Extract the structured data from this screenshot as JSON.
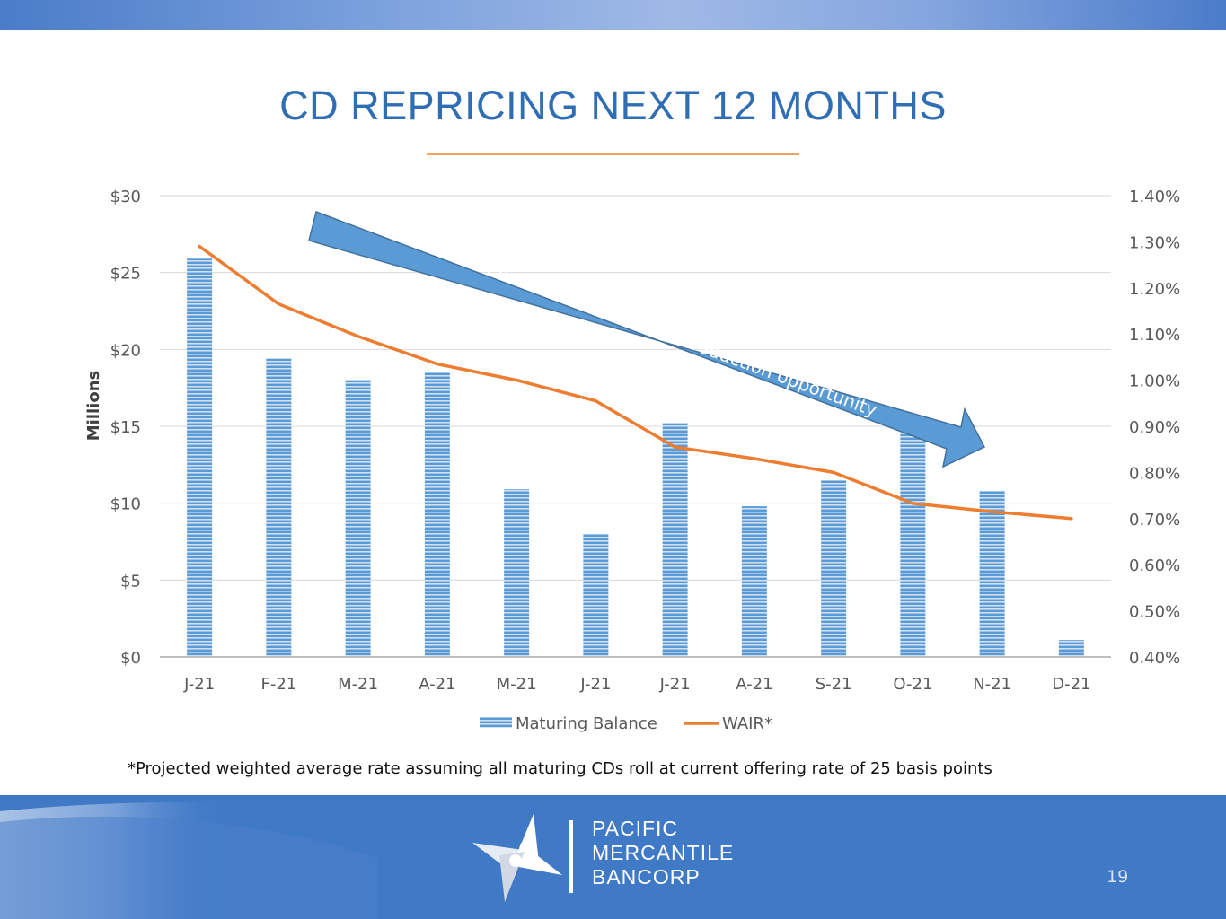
{
  "slide": {
    "title": "CD REPRICING NEXT 12 MONTHS",
    "footnote": "*Projected weighted average rate assuming all maturing CDs roll at current offering rate of 25 basis points",
    "page_number": "19",
    "logo_lines": [
      "PACIFIC",
      "MERCANTILE",
      "BANCORP"
    ]
  },
  "colors": {
    "title": "#2f6db5",
    "bar": "#5b9bd5",
    "line": "#ed7d31",
    "arrow": "#5b9bd5",
    "footer": "#4079c6"
  },
  "chart_data": {
    "type": "bar",
    "categories": [
      "J-21",
      "F-21",
      "M-21",
      "A-21",
      "M-21",
      "J-21",
      "J-21",
      "A-21",
      "S-21",
      "O-21",
      "N-21",
      "D-21"
    ],
    "series": [
      {
        "name": "Maturing Balance",
        "axis": "left",
        "kind": "bar",
        "values": [
          25.9,
          19.4,
          18.0,
          18.5,
          10.9,
          8.0,
          15.2,
          9.8,
          11.5,
          14.5,
          10.8,
          1.1
        ]
      },
      {
        "name": "WAIR*",
        "axis": "right",
        "kind": "line",
        "values": [
          1.29,
          1.165,
          1.095,
          1.035,
          1.0,
          0.955,
          0.855,
          0.83,
          0.8,
          0.733,
          0.715,
          0.7
        ]
      }
    ],
    "ylabel": "Millions",
    "ylim": [
      0,
      30
    ],
    "yticks": [
      0,
      5,
      10,
      15,
      20,
      25,
      30
    ],
    "ytick_labels": [
      "$0",
      "$5",
      "$10",
      "$15",
      "$20",
      "$25",
      "$30"
    ],
    "y2lim": [
      0.4,
      1.4
    ],
    "y2ticks": [
      0.4,
      0.5,
      0.6,
      0.7,
      0.8,
      0.9,
      1.0,
      1.1,
      1.2,
      1.3,
      1.4
    ],
    "y2tick_labels": [
      "0.40%",
      "0.50%",
      "0.60%",
      "0.70%",
      "0.80%",
      "0.90%",
      "1.00%",
      "1.10%",
      "1.20%",
      "1.30%",
      "1.40%"
    ],
    "legend": [
      "Maturing Balance",
      "WAIR*"
    ],
    "legend_position": "bottom",
    "grid": true,
    "annotation": "Continued cost of funds reduction opportunity"
  }
}
